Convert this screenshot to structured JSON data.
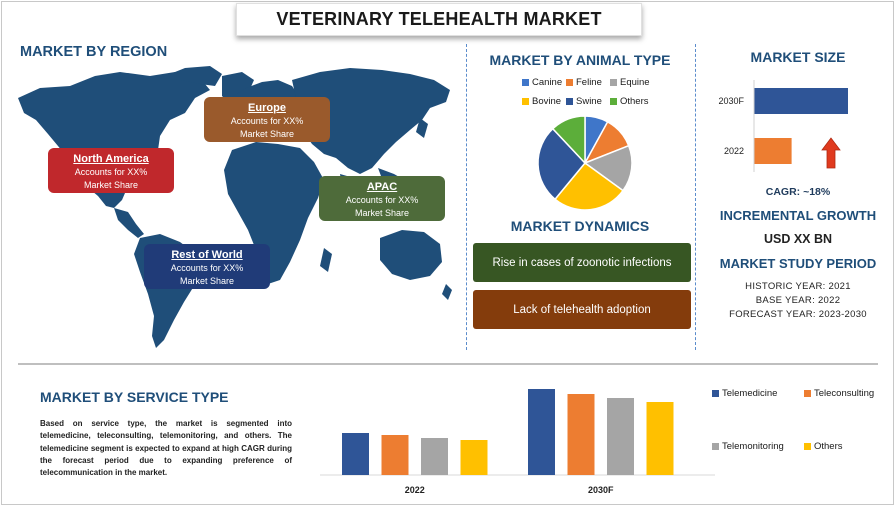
{
  "title": "VETERINARY TELEHEALTH MARKET",
  "region": {
    "heading": "MARKET BY REGION",
    "items": [
      {
        "name": "North America",
        "line1": "Accounts for XX%",
        "line2": "Market Share",
        "color": "#c0282c"
      },
      {
        "name": "Europe",
        "line1": "Accounts for XX%",
        "line2": "Market Share",
        "color": "#9a5a2c"
      },
      {
        "name": "APAC",
        "line1": "Accounts for XX%",
        "line2": "Market Share",
        "color": "#4e6b3a"
      },
      {
        "name": "Rest of World",
        "line1": "Accounts for XX%",
        "line2": "Market Share",
        "color": "#203b78"
      }
    ]
  },
  "animal": {
    "heading": "MARKET BY ANIMAL TYPE",
    "legend": [
      {
        "name": "Canine",
        "color": "#3f76c9"
      },
      {
        "name": "Feline",
        "color": "#ed7d31"
      },
      {
        "name": "Equine",
        "color": "#a5a5a5"
      },
      {
        "name": "Bovine",
        "color": "#ffc000"
      },
      {
        "name": "Swine",
        "color": "#2f5597"
      },
      {
        "name": "Others",
        "color": "#5cae3a"
      }
    ]
  },
  "dynamics": {
    "heading": "MARKET DYNAMICS",
    "items": [
      {
        "text": "Rise in cases of zoonotic infections",
        "color": "#375623"
      },
      {
        "text": "Lack of telehealth adoption",
        "color": "#843c0c"
      }
    ]
  },
  "size": {
    "heading": "MARKET SIZE",
    "cagr": "CAGR:  ~18%",
    "incremental_heading": "INCREMENTAL GROWTH",
    "incremental_value": "USD XX BN",
    "period_heading": "MARKET STUDY PERIOD",
    "historic": "HISTORIC YEAR: 2021",
    "base": "BASE YEAR: 2022",
    "forecast": "FORECAST YEAR: 2023-2030",
    "arrow_color": "#e03a1e"
  },
  "service": {
    "heading": "MARKET BY SERVICE TYPE",
    "paragraph": "Based on service type, the market is segmented into telemedicine, teleconsulting, telemonitoring, and others. The telemedicine segment is expected to expand at high CAGR during the forecast period due to expanding preference of telecommunication in the market."
  },
  "chart_data": [
    {
      "type": "pie",
      "labels": [
        "Canine",
        "Feline",
        "Equine",
        "Bovine",
        "Swine",
        "Others"
      ],
      "values": [
        8,
        11,
        16,
        26,
        27,
        12
      ],
      "colors": [
        "#3f76c9",
        "#ed7d31",
        "#a5a5a5",
        "#ffc000",
        "#2f5597",
        "#5cae3a"
      ]
    },
    {
      "type": "bar",
      "orientation": "horizontal",
      "categories": [
        "2030F",
        "2022"
      ],
      "values": [
        100,
        40
      ],
      "colors": [
        "#2f5597",
        "#ed7d31"
      ]
    },
    {
      "type": "bar",
      "categories": [
        "2022",
        "2030F"
      ],
      "series": [
        {
          "name": "Telemedicine",
          "values": [
            42,
            86
          ],
          "color": "#2f5597"
        },
        {
          "name": "Teleconsulting",
          "values": [
            40,
            81
          ],
          "color": "#ed7d31"
        },
        {
          "name": "Telemonitoring",
          "values": [
            37,
            77
          ],
          "color": "#a5a5a5"
        },
        {
          "name": "Others",
          "values": [
            35,
            73
          ],
          "color": "#ffc000"
        }
      ],
      "legend": [
        "Telemedicine",
        "Teleconsulting",
        "Telemonitoring",
        "Others"
      ]
    }
  ]
}
